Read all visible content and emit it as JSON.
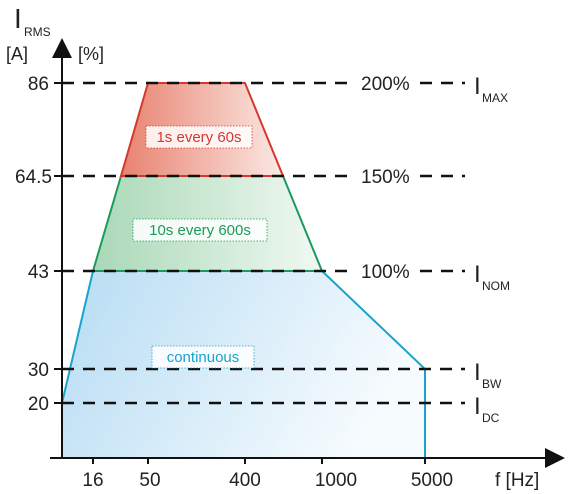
{
  "axes": {
    "y_title_main": "I",
    "y_title_sub": "RMS",
    "y_unit_a": "[A]",
    "y_unit_pct": "[%]",
    "x_title": "f [Hz]"
  },
  "y_ticks": [
    "86",
    "64.5",
    "43",
    "30",
    "20"
  ],
  "x_ticks": [
    "16",
    "50",
    "400",
    "1000",
    "5000"
  ],
  "percent_labels": [
    "200%",
    "150%",
    "100%"
  ],
  "right_labels": {
    "max": {
      "main": "I",
      "sub": "MAX"
    },
    "nom": {
      "main": "I",
      "sub": "NOM"
    },
    "bw": {
      "main": "I",
      "sub": "BW"
    },
    "dc": {
      "main": "I",
      "sub": "DC"
    }
  },
  "regions": {
    "overload_200": "1s every 60s",
    "overload_150": "10s every 600s",
    "continuous": "continuous"
  },
  "colors": {
    "overload_200": "#d4382f",
    "overload_150": "#1a9a5c",
    "continuous": "#1aa3cc"
  }
}
